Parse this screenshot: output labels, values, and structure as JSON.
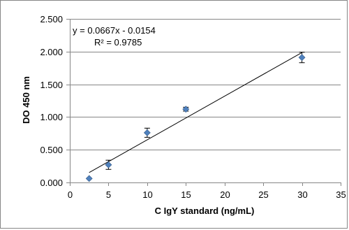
{
  "chart_data": {
    "type": "scatter",
    "xlabel": "C IgY standard (ng/mL)",
    "ylabel": "DO 450 nm",
    "xlim": [
      0,
      35
    ],
    "ylim": [
      0,
      2.5
    ],
    "x_ticks": [
      "0",
      "5",
      "10",
      "15",
      "20",
      "25",
      "30",
      "35"
    ],
    "y_ticks": [
      "0.000",
      "0.500",
      "1.000",
      "1.500",
      "2.000",
      "2.500"
    ],
    "grid": "horizontal",
    "marker_color": "#4F81BD",
    "points": [
      {
        "x": 2.5,
        "y": 0.06,
        "err": 0.0
      },
      {
        "x": 5,
        "y": 0.27,
        "err": 0.07
      },
      {
        "x": 10,
        "y": 0.76,
        "err": 0.07
      },
      {
        "x": 15,
        "y": 1.12,
        "err": 0.03
      },
      {
        "x": 30,
        "y": 1.91,
        "err": 0.08
      }
    ],
    "trendline": {
      "slope": 0.0667,
      "intercept": -0.0154,
      "x_range": [
        2.5,
        30
      ],
      "equation": "y = 0.0667x - 0.0154",
      "r_squared": "R² = 0.9785"
    }
  }
}
